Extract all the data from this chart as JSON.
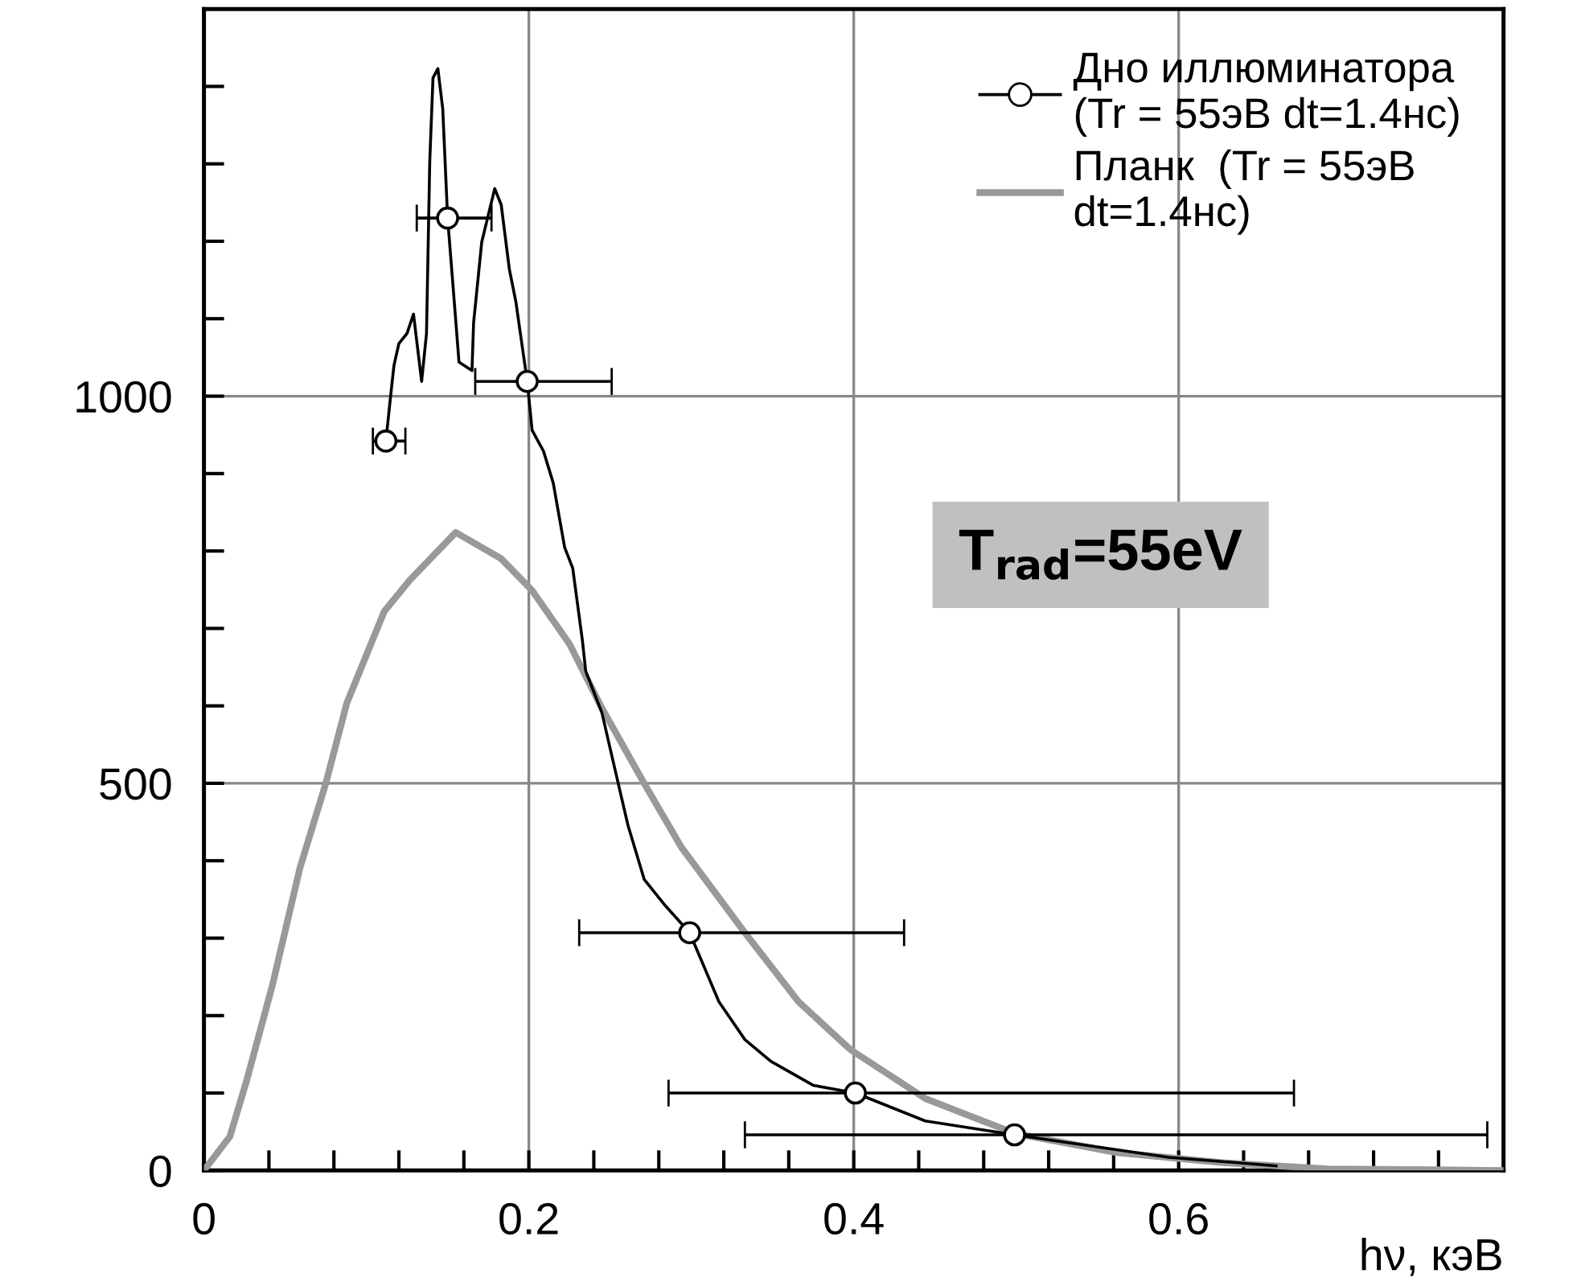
{
  "chart_data": {
    "type": "line",
    "xlabel": "hν, кэВ",
    "xlim": [
      0,
      0.8
    ],
    "ylim": [
      0,
      1500
    ],
    "xticks": [
      0,
      {
        "value": 0.04,
        "label": null
      },
      {
        "value": 0.08,
        "label": null
      },
      {
        "value": 0.12,
        "label": null
      },
      {
        "value": 0.16,
        "label": null
      },
      0.2,
      {
        "value": 0.24,
        "label": null
      },
      {
        "value": 0.28,
        "label": null
      },
      {
        "value": 0.32,
        "label": null
      },
      {
        "value": 0.36,
        "label": null
      },
      0.4,
      {
        "value": 0.44,
        "label": null
      },
      {
        "value": 0.48,
        "label": null
      },
      {
        "value": 0.52,
        "label": null
      },
      {
        "value": 0.56,
        "label": null
      },
      0.6,
      {
        "value": 0.64,
        "label": null
      },
      {
        "value": 0.68,
        "label": null
      },
      {
        "value": 0.72,
        "label": null
      },
      {
        "value": 0.76,
        "label": null
      }
    ],
    "yticks": [
      0,
      {
        "value": 100,
        "label": null
      },
      {
        "value": 200,
        "label": null
      },
      {
        "value": 300,
        "label": null
      },
      {
        "value": 400,
        "label": null
      },
      500,
      {
        "value": 600,
        "label": null
      },
      {
        "value": 700,
        "label": null
      },
      {
        "value": 800,
        "label": null
      },
      {
        "value": 900,
        "label": null
      },
      1000,
      {
        "value": 1100,
        "label": null
      },
      {
        "value": 1200,
        "label": null
      },
      {
        "value": 1300,
        "label": null
      },
      {
        "value": 1400,
        "label": null
      }
    ],
    "grid": true,
    "legend": "top right",
    "marker": "none",
    "line_style": "solid",
    "annotations": [
      "T$_{rad}$=55eV"
    ],
    "series": [
      {
        "name": "Дно иллюминатора\n(Tr = 55эВ dt=1.4нс)",
        "color": "#000000",
        "x": [
          0.112,
          0.115,
          0.117,
          0.12,
          0.125,
          0.129,
          0.134,
          0.137,
          0.139,
          0.141,
          0.144,
          0.147,
          0.15,
          0.153,
          0.157,
          0.165,
          0.166,
          0.171,
          0.179,
          0.183,
          0.188,
          0.192,
          0.199,
          0.202,
          0.209,
          0.215,
          0.222,
          0.227,
          0.233,
          0.235,
          0.245,
          0.255,
          0.261,
          0.271,
          0.284,
          0.299,
          0.317,
          0.333,
          0.349,
          0.375,
          0.401,
          0.444,
          0.499,
          0.594,
          0.66
        ],
        "values": [
          942,
          1002,
          1040,
          1068,
          1081,
          1106,
          1019,
          1081,
          1303,
          1411,
          1423,
          1371,
          1230,
          1151,
          1044,
          1033,
          1095,
          1199,
          1268,
          1247,
          1164,
          1122,
          1019,
          956,
          929,
          888,
          805,
          778,
          684,
          645,
          591,
          500,
          446,
          376,
          342,
          307,
          218,
          169,
          141,
          110,
          100,
          64,
          46,
          17,
          6
        ]
      },
      {
        "name": "Планк  (Tr = 55эВ\ndt=1.4нс)",
        "color": "#999999",
        "x": [
          0,
          0.016,
          0.026,
          0.042,
          0.059,
          0.075,
          0.088,
          0.111,
          0.127,
          0.155,
          0.183,
          0.202,
          0.225,
          0.245,
          0.271,
          0.294,
          0.333,
          0.366,
          0.398,
          0.444,
          0.499,
          0.562,
          0.627,
          0.692,
          0.8
        ],
        "values": [
          0,
          44,
          114,
          238,
          390,
          500,
          604,
          722,
          763,
          824,
          790,
          749,
          680,
          597,
          500,
          417,
          307,
          218,
          156,
          93,
          48,
          23,
          10,
          2,
          0
        ]
      },
      {
        "type": "scatter",
        "marker": "circle",
        "color": "#000000",
        "x": [
          0.112,
          0.15,
          0.199,
          0.299,
          0.401,
          0.499
        ],
        "values": [
          942,
          1230,
          1019,
          307,
          100,
          46
        ],
        "xerrors": [
          [
            0.104,
            0.124
          ],
          [
            0.131,
            0.177
          ],
          [
            0.167,
            0.251
          ],
          [
            0.231,
            0.431
          ],
          [
            0.286,
            0.671
          ],
          [
            0.333,
            0.79
          ]
        ]
      }
    ]
  }
}
